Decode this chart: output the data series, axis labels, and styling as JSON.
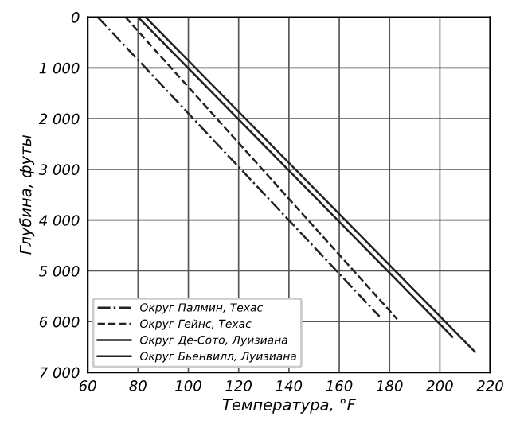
{
  "chart_data": {
    "type": "line",
    "xlabel": "Температура, °F",
    "ylabel": "Глубина, футы",
    "xlim": [
      60,
      220
    ],
    "xticks": [
      60,
      80,
      100,
      120,
      140,
      160,
      180,
      200,
      220
    ],
    "ylim": [
      7000,
      0
    ],
    "yticks": [
      {
        "value": 0,
        "label": "0"
      },
      {
        "value": 1000,
        "label": "1 000"
      },
      {
        "value": 2000,
        "label": "2 000"
      },
      {
        "value": 3000,
        "label": "3 000"
      },
      {
        "value": 4000,
        "label": "4 000"
      },
      {
        "value": 5000,
        "label": "5 000"
      },
      {
        "value": 6000,
        "label": "6 000"
      },
      {
        "value": 7000,
        "label": "7 000"
      }
    ],
    "grid": true,
    "legend": "lower left",
    "series": [
      {
        "name": "Округ Палмин, Техас",
        "color": "#222222",
        "line_style": "dashdot",
        "x": [
          64,
          176
        ],
        "values": [
          0,
          5900
        ]
      },
      {
        "name": "Округ Гейнс, Техас",
        "color": "#222222",
        "line_style": "dashed",
        "x": [
          75,
          183
        ],
        "values": [
          0,
          5950
        ]
      },
      {
        "name": "Округ Де-Сото, Луизиана",
        "color": "#222222",
        "line_style": "solid",
        "x": [
          80,
          205
        ],
        "values": [
          0,
          6300
        ]
      },
      {
        "name": "Округ Бьенвилл, Луизиана",
        "color": "#222222",
        "line_style": "solid",
        "x": [
          83,
          214
        ],
        "values": [
          0,
          6600
        ]
      }
    ]
  }
}
